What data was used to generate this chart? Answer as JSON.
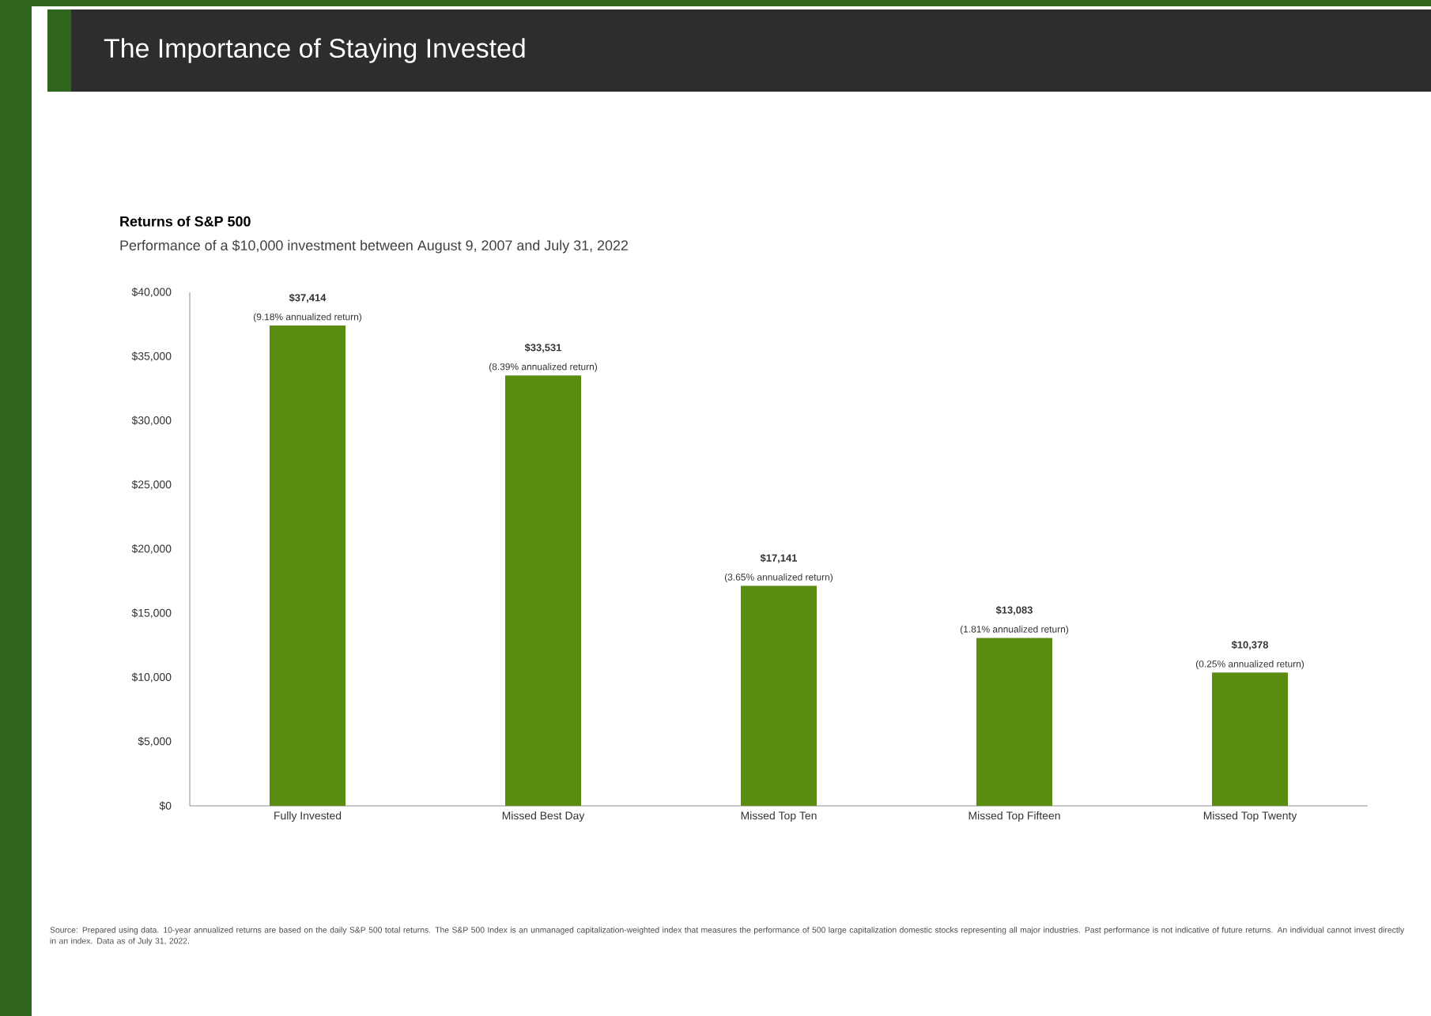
{
  "chart_data": {
    "type": "bar",
    "title": "The Importance of Staying Invested",
    "subtitle": "Returns of S&P 500",
    "categories": [
      "Fully Invested",
      "Missed Best Day",
      "Missed Top Ten",
      "Missed Top Fifteen",
      "Missed Top Twenty"
    ],
    "values": [
      37414,
      33531,
      17141,
      13083,
      10378
    ],
    "color": "#5b8c12",
    "value_labels": [
      "$37,414",
      "$33,531",
      "$17,141",
      "$13,083",
      "$10,378"
    ],
    "ylim": [
      0,
      40000
    ],
    "yticks": [
      {
        "value": 0,
        "label": "$0"
      },
      {
        "value": 5000,
        "label": "$5,000"
      },
      {
        "value": 10000,
        "label": "$10,000"
      },
      {
        "value": 15000,
        "label": "$15,000"
      },
      {
        "value": 20000,
        "label": "$20,000"
      },
      {
        "value": 25000,
        "label": "$25,000"
      },
      {
        "value": 30000,
        "label": "$30,000"
      },
      {
        "value": 35000,
        "label": "$35,000"
      },
      {
        "value": 40000,
        "label": "$40,000"
      }
    ],
    "grid": false,
    "annotations": [
      "Performance of a $10,000 investment between August 9, 2007 and July 31, 2022",
      {
        "text": "(9.18% annualized return)",
        "x": "Fully Invested",
        "y": 37414
      },
      {
        "text": "(8.39% annualized return)",
        "x": "Missed Best Day",
        "y": 33531
      },
      {
        "text": "(3.65% annualized return)",
        "x": "Missed Top Ten",
        "y": 17141
      },
      {
        "text": "(1.81% annualized return)",
        "x": "Missed Top Fifteen",
        "y": 13083
      },
      {
        "text": "(0.25% annualized return)",
        "x": "Missed Top Twenty",
        "y": 10378
      },
      "Source: Prepared using data. 10-year annualized returns are based on the daily S&P 500 total returns. The S&P 500 Index is an unmanaged capitalization-weighted index that measures the performance of 500 large capitalization domestic stocks representing all major industries. Past performance is not indicative of future returns. An individual cannot invest directly in an index. Data as of July 31, 2022."
    ]
  }
}
